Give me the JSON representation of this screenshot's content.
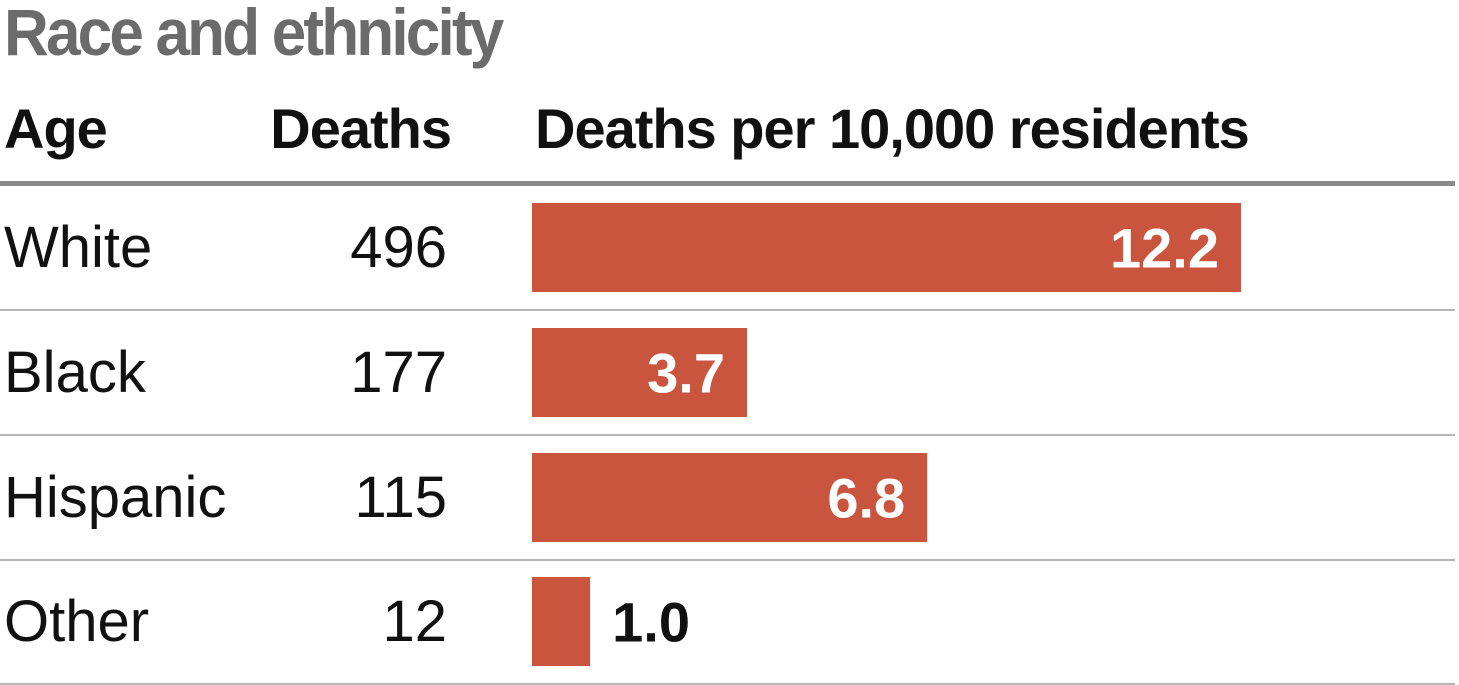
{
  "chart_data": {
    "type": "bar",
    "orientation": "horizontal",
    "title": "Race and ethnicity",
    "columns": {
      "category": "Age",
      "deaths": "Deaths",
      "rate": "Deaths per 10,000 residents"
    },
    "categories": [
      "White",
      "Black",
      "Hispanic",
      "Other"
    ],
    "deaths": [
      "496",
      "177",
      "115",
      "12"
    ],
    "values": [
      12.2,
      3.7,
      6.8,
      1.0
    ],
    "value_labels": [
      "12.2",
      "3.7",
      "6.8",
      "1.0"
    ],
    "xlim": [
      0,
      12.2
    ],
    "grid": false,
    "legend": "none"
  },
  "colors": {
    "bar": "#c9553f",
    "title": "#6b6b6b",
    "label_inside": "#ffffff",
    "label_outside": "#111111"
  }
}
